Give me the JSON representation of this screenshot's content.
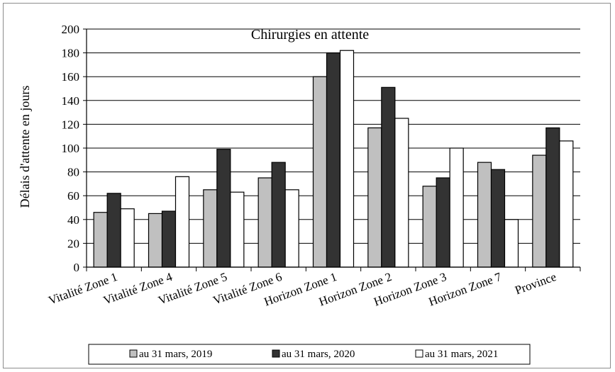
{
  "chart_data": {
    "type": "bar",
    "title": "Chirurgies en attente",
    "xlabel": "",
    "ylabel": "Délais d'attente en jours",
    "ylim": [
      0,
      200
    ],
    "yticks": [
      "0",
      "20",
      "40",
      "60",
      "80",
      "100",
      "120",
      "140",
      "160",
      "180",
      "200"
    ],
    "grid": true,
    "legend_position": "bottom",
    "categories": [
      "Vitalité Zone 1",
      "Vitalité Zone 4",
      "Vitalité Zone 5",
      "Vitalité Zone 6",
      "Horizon Zone 1",
      "Horizon Zone 2",
      "Horizon Zone 3",
      "Horizon Zone 7",
      "Province"
    ],
    "series": [
      {
        "name": "au 31 mars, 2019",
        "color": "#c0c0c0",
        "values": [
          46,
          45,
          65,
          75,
          160,
          117,
          68,
          88,
          94
        ]
      },
      {
        "name": "au 31 mars, 2020",
        "color": "#333333",
        "values": [
          62,
          47,
          99,
          88,
          180,
          151,
          75,
          82,
          117
        ]
      },
      {
        "name": "au 31 mars, 2021",
        "color": "#ffffff",
        "values": [
          49,
          76,
          63,
          65,
          182,
          125,
          100,
          40,
          106
        ]
      }
    ]
  }
}
